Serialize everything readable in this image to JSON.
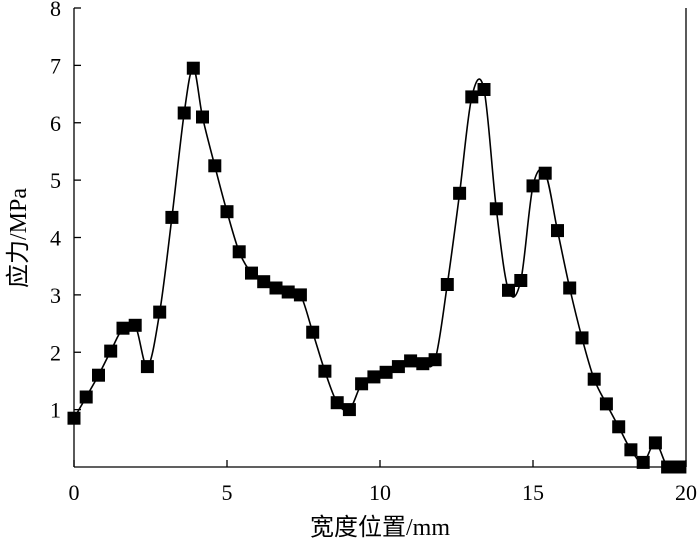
{
  "chart_data": {
    "type": "line",
    "xlabel": "宽度位置/mm",
    "ylabel": "应力/MPa",
    "xlim": [
      0,
      20
    ],
    "ylim": [
      0,
      8
    ],
    "x_ticks": [
      0,
      5,
      10,
      15,
      20
    ],
    "y_ticks": [
      1,
      2,
      3,
      4,
      5,
      6,
      7,
      8
    ],
    "grid": false,
    "legend": "none",
    "series": [
      {
        "marker": "square",
        "color": "#000000",
        "x": [
          0.0,
          0.4,
          0.8,
          1.2,
          1.6,
          2.0,
          2.4,
          2.8,
          3.2,
          3.6,
          3.9,
          4.2,
          4.6,
          5.0,
          5.4,
          5.8,
          6.2,
          6.6,
          7.0,
          7.4,
          7.8,
          8.2,
          8.6,
          9.0,
          9.4,
          9.8,
          10.2,
          10.6,
          11.0,
          11.4,
          11.8,
          12.2,
          12.6,
          13.0,
          13.4,
          13.8,
          14.2,
          14.6,
          15.0,
          15.4,
          15.8,
          16.2,
          16.6,
          17.0,
          17.4,
          17.8,
          18.2,
          18.6,
          19.0,
          19.4,
          19.8
        ],
        "values": [
          0.85,
          1.22,
          1.6,
          2.02,
          2.42,
          2.47,
          1.75,
          2.7,
          4.35,
          6.17,
          6.95,
          6.1,
          5.25,
          4.45,
          3.75,
          3.38,
          3.23,
          3.12,
          3.05,
          3.0,
          2.35,
          1.67,
          1.12,
          1.0,
          1.45,
          1.57,
          1.65,
          1.75,
          1.85,
          1.8,
          1.87,
          3.18,
          4.77,
          6.45,
          6.58,
          4.5,
          3.08,
          3.25,
          4.9,
          5.12,
          4.12,
          3.12,
          2.25,
          1.53,
          1.1,
          0.7,
          0.3,
          0.08,
          0.42,
          0.0,
          0.0
        ]
      }
    ]
  }
}
